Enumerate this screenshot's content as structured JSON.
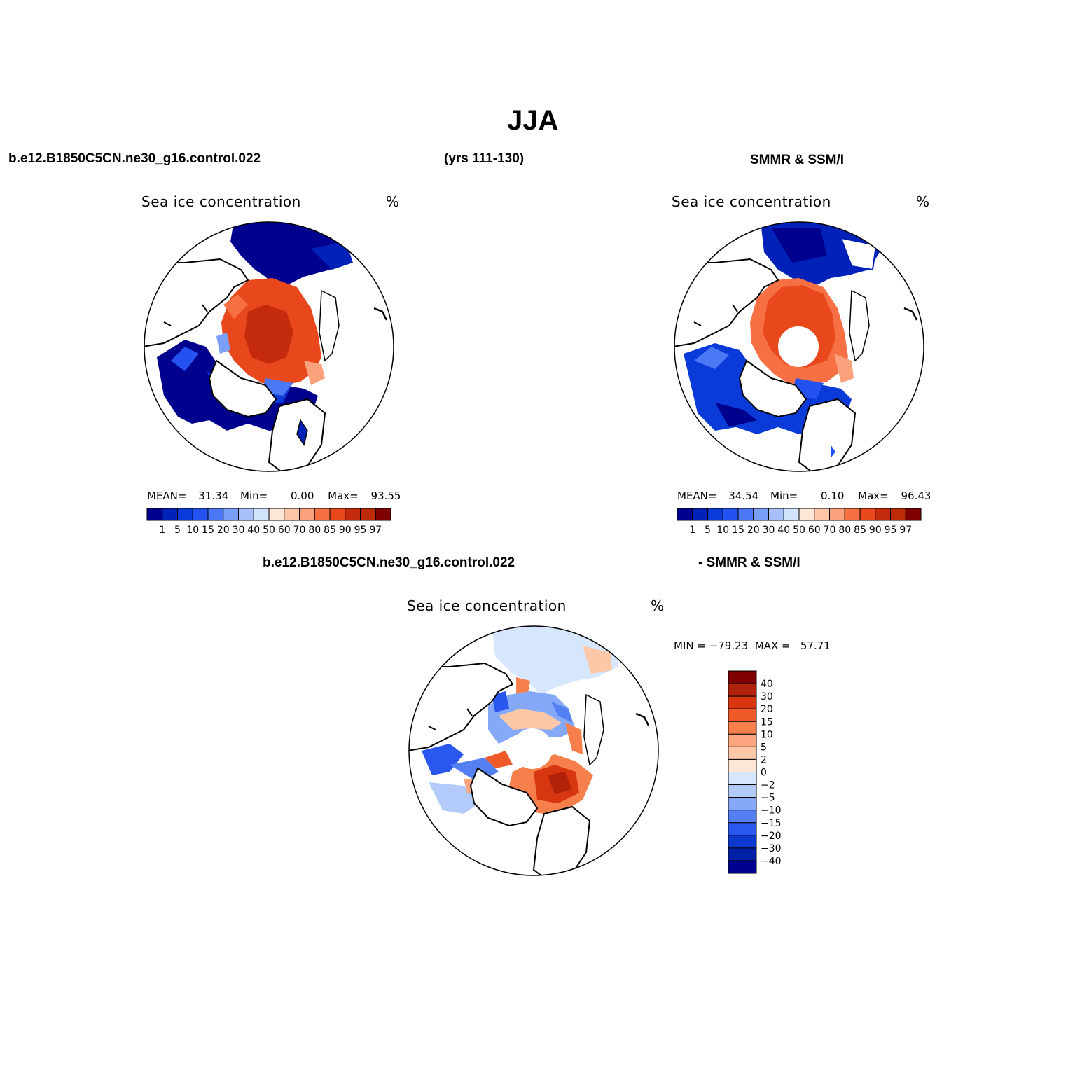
{
  "figure": {
    "title": "JJA",
    "model_name": "b.e12.B1850C5CN.ne30_g16.control.022",
    "years": "(yrs 111-130)",
    "obs_name": "SMMR & SSM/I",
    "diff_model_name": "b.e12.B1850C5CN.ne30_g16.control.022",
    "diff_obs_name": "- SMMR & SSM/I"
  },
  "panels": {
    "model": {
      "field": "Sea ice concentration",
      "units": "%",
      "mean_label": "MEAN=",
      "mean": "31.34",
      "min_label": "Min=",
      "min": "0.00",
      "max_label": "Max=",
      "max": "93.55"
    },
    "obs": {
      "field": "Sea ice concentration",
      "units": "%",
      "mean_label": "MEAN=",
      "mean": "34.54",
      "min_label": "Min=",
      "min": "0.10",
      "max_label": "Max=",
      "max": "96.43"
    },
    "diff": {
      "field": "Sea ice concentration",
      "units": "%",
      "minmax": "MIN = −79.23  MAX =   57.71"
    }
  },
  "colorbar_abs": {
    "labels": [
      "1",
      "5",
      "10",
      "15",
      "20",
      "30",
      "40",
      "50",
      "60",
      "70",
      "80",
      "85",
      "90",
      "95",
      "97"
    ],
    "colors": [
      "#00008f",
      "#0022b8",
      "#0a3bd9",
      "#2452f0",
      "#4b78f5",
      "#7a9ff8",
      "#a7c0fa",
      "#d2e3fc",
      "#fde6d6",
      "#fcc5a8",
      "#fba17c",
      "#f67044",
      "#e8481b",
      "#c32b0c",
      "#bd2a08",
      "#7f0000"
    ]
  },
  "colorbar_diff": {
    "labels": [
      "40",
      "30",
      "20",
      "15",
      "10",
      "5",
      "2",
      "0",
      "−2",
      "−5",
      "−10",
      "−15",
      "−20",
      "−30",
      "−40"
    ],
    "colors": [
      "#7f0000",
      "#b0220a",
      "#d8360e",
      "#ef5a28",
      "#f77f4c",
      "#fca57e",
      "#fdc8a8",
      "#fee6d6",
      "#d6e6fc",
      "#b3cbfb",
      "#86a8f8",
      "#5580f4",
      "#2a57ee",
      "#0e39cf",
      "#0020a8",
      "#00008f"
    ]
  }
}
